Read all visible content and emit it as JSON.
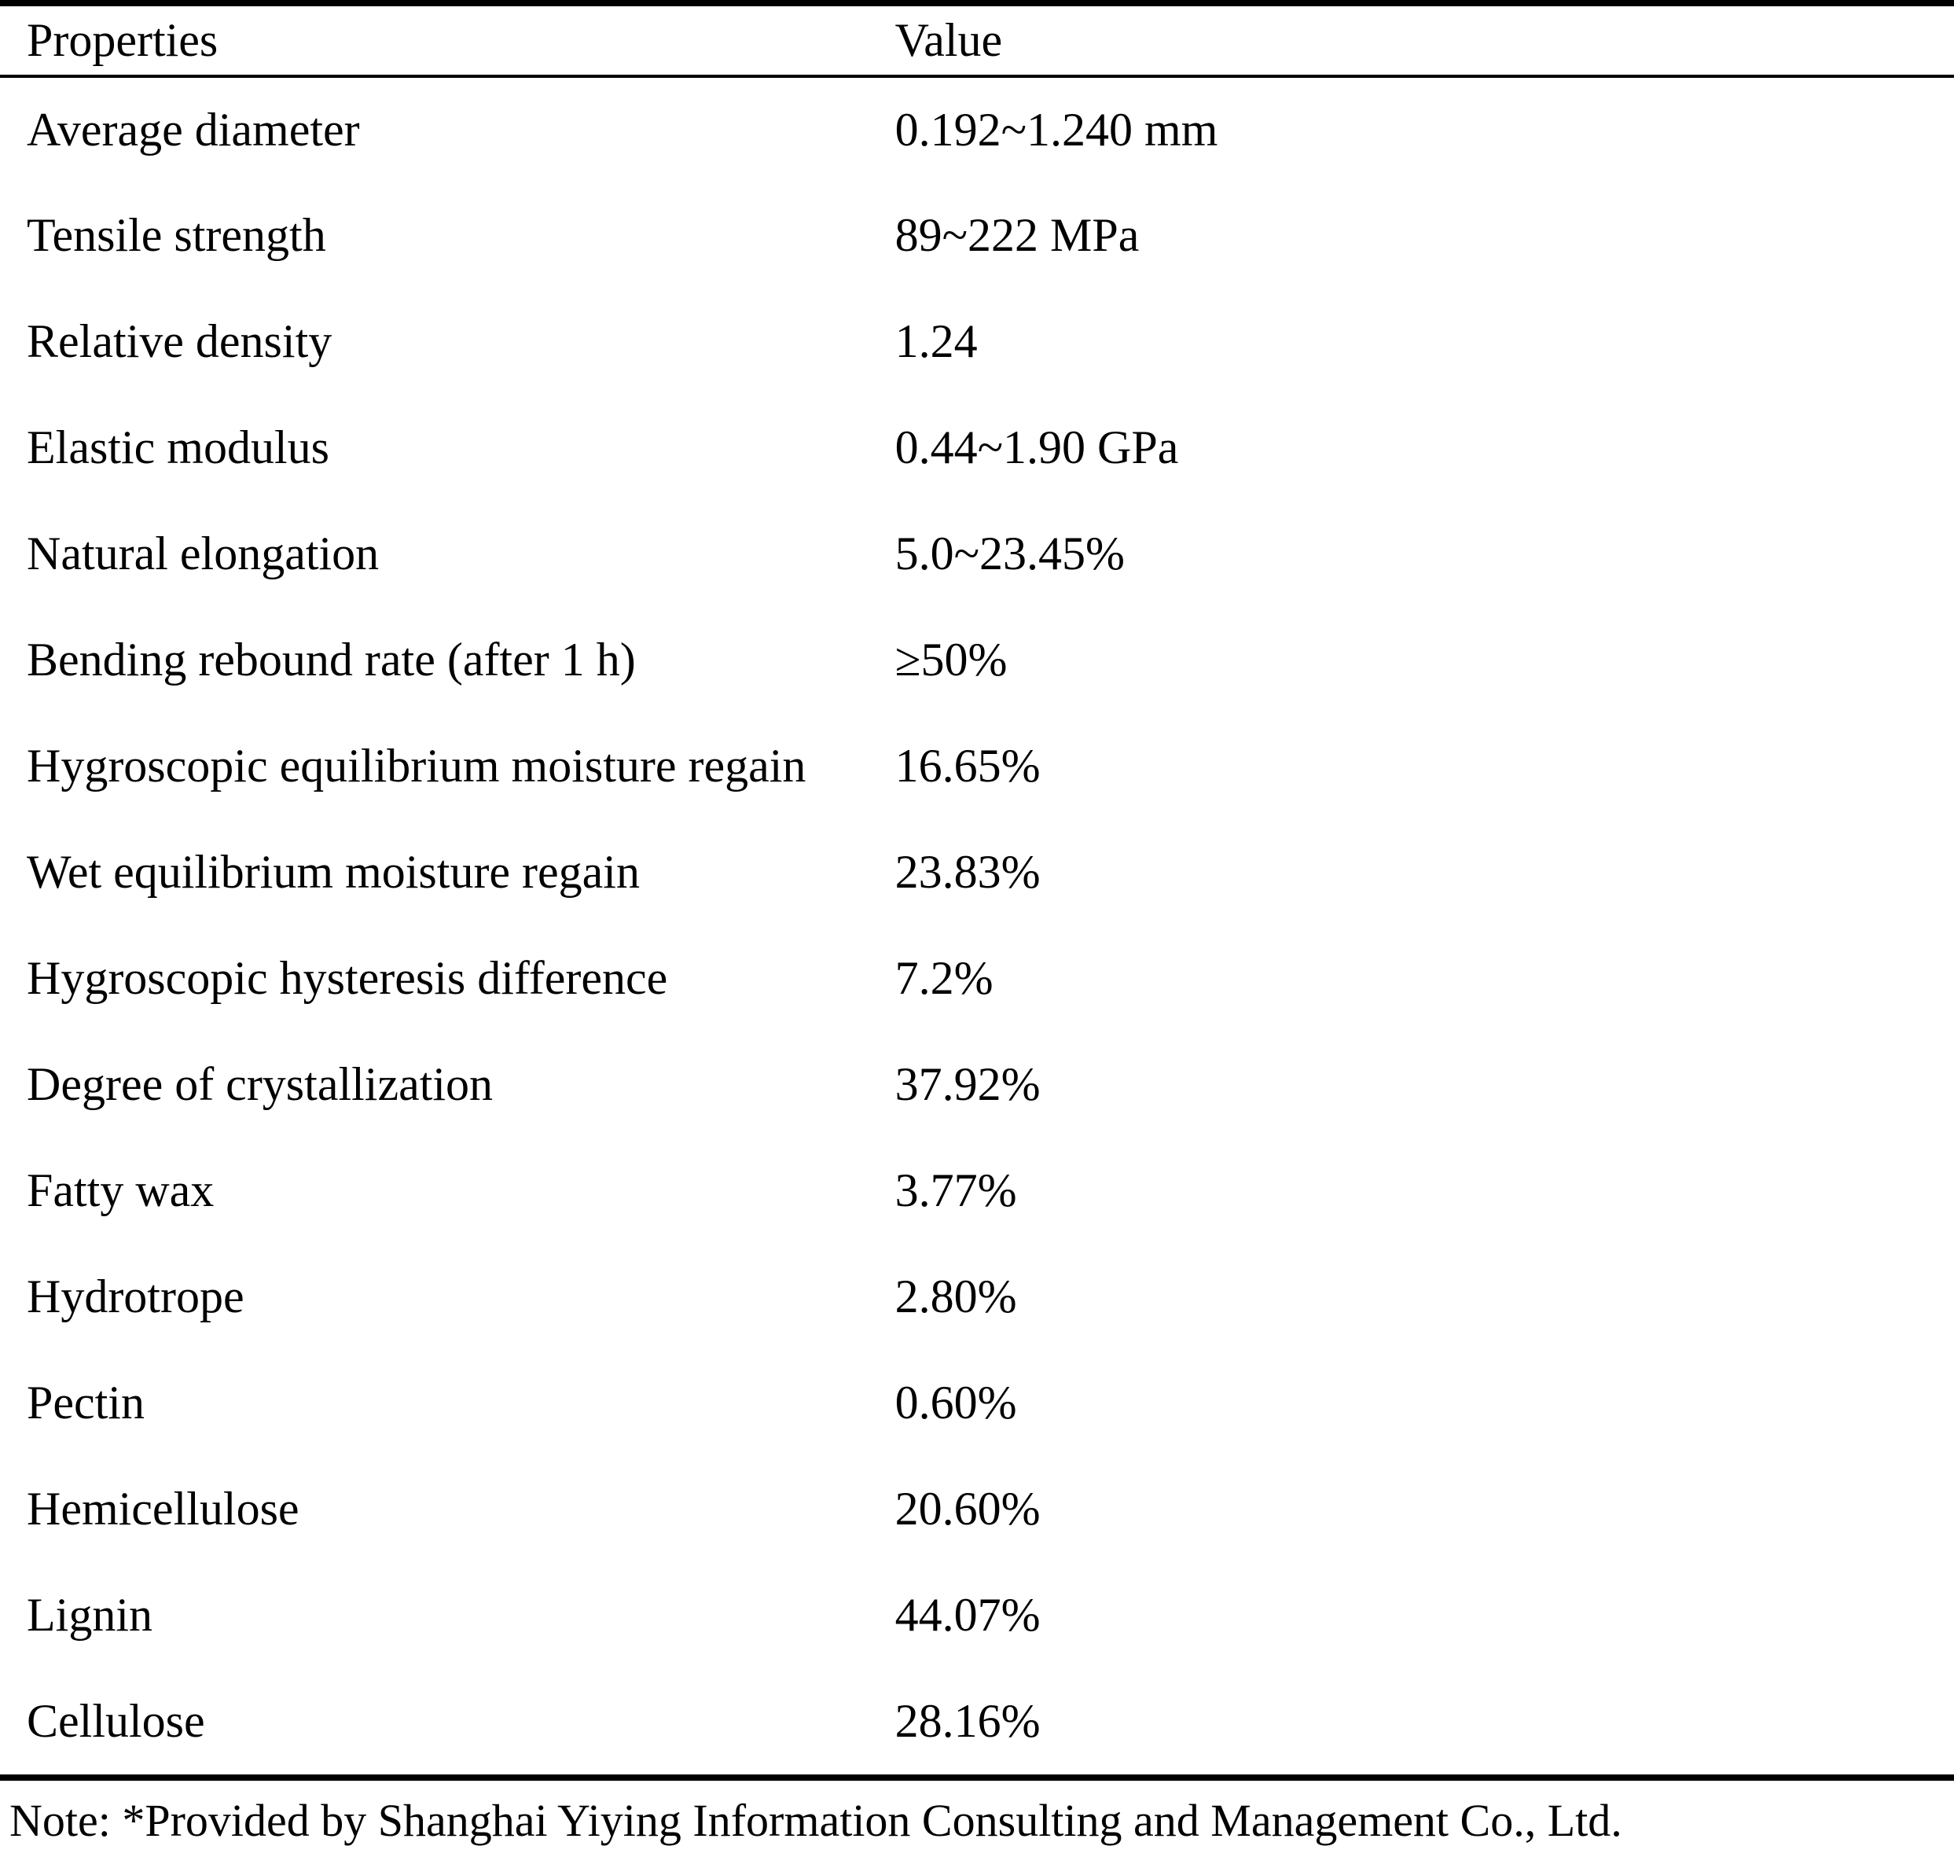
{
  "table": {
    "header": {
      "property": "Properties",
      "value": "Value"
    },
    "rows": [
      {
        "property": "Average diameter",
        "value": "0.192~1.240 mm"
      },
      {
        "property": "Tensile strength",
        "value": "89~222 MPa"
      },
      {
        "property": "Relative density",
        "value": "1.24"
      },
      {
        "property": "Elastic modulus",
        "value": "0.44~1.90 GPa"
      },
      {
        "property": "Natural elongation",
        "value": "5.0~23.45%"
      },
      {
        "property": "Bending rebound rate (after 1 h)",
        "value": "≥50%"
      },
      {
        "property": "Hygroscopic equilibrium moisture regain",
        "value": "16.65%"
      },
      {
        "property": "Wet equilibrium moisture regain",
        "value": "23.83%"
      },
      {
        "property": "Hygroscopic hysteresis difference",
        "value": "7.2%"
      },
      {
        "property": "Degree of crystallization",
        "value": "37.92%"
      },
      {
        "property": "Fatty wax",
        "value": "3.77%"
      },
      {
        "property": "Hydrotrope",
        "value": "2.80%"
      },
      {
        "property": "Pectin",
        "value": "0.60%"
      },
      {
        "property": "Hemicellulose",
        "value": "20.60%"
      },
      {
        "property": "Lignin",
        "value": "44.07%"
      },
      {
        "property": "Cellulose",
        "value": "28.16%"
      }
    ],
    "note": "Note: *Provided by Shanghai Yiying Information Consulting and Management Co., Ltd."
  },
  "chart_data": {
    "type": "table",
    "columns": [
      "Properties",
      "Value"
    ],
    "rows": [
      [
        "Average diameter",
        "0.192~1.240 mm"
      ],
      [
        "Tensile strength",
        "89~222 MPa"
      ],
      [
        "Relative density",
        "1.24"
      ],
      [
        "Elastic modulus",
        "0.44~1.90 GPa"
      ],
      [
        "Natural elongation",
        "5.0~23.45%"
      ],
      [
        "Bending rebound rate (after 1 h)",
        "≥50%"
      ],
      [
        "Hygroscopic equilibrium moisture regain",
        "16.65%"
      ],
      [
        "Wet equilibrium moisture regain",
        "23.83%"
      ],
      [
        "Hygroscopic hysteresis difference",
        "7.2%"
      ],
      [
        "Degree of crystallization",
        "37.92%"
      ],
      [
        "Fatty wax",
        "3.77%"
      ],
      [
        "Hydrotrope",
        "2.80%"
      ],
      [
        "Pectin",
        "0.60%"
      ],
      [
        "Hemicellulose",
        "20.60%"
      ],
      [
        "Lignin",
        "44.07%"
      ],
      [
        "Cellulose",
        "28.16%"
      ]
    ],
    "note": "Note: *Provided by Shanghai Yiying Information Consulting and Management Co., Ltd."
  },
  "colors": {
    "text": "#000000",
    "background": "#ffffff",
    "rule": "#000000"
  }
}
